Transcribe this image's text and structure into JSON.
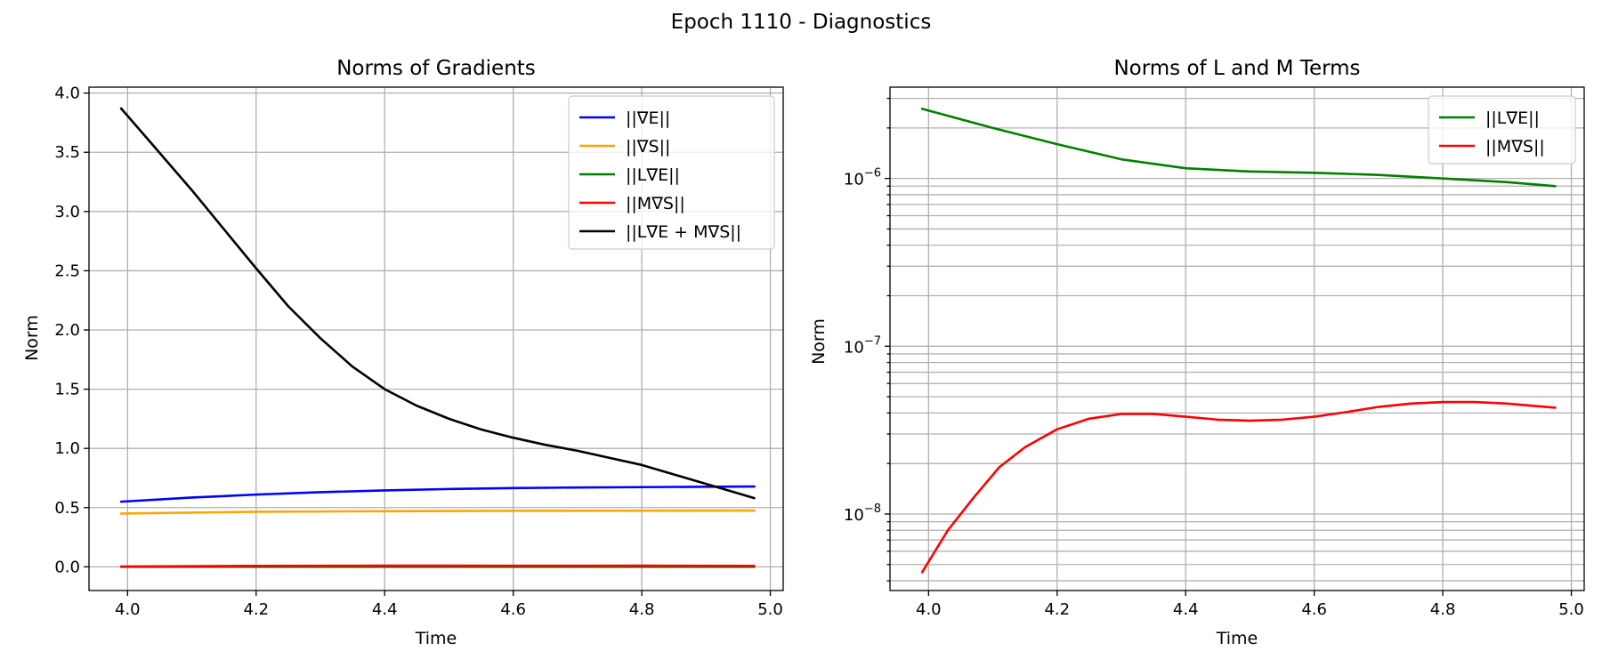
{
  "figure": {
    "suptitle": "Epoch 1110 - Diagnostics"
  },
  "chart_data": [
    {
      "type": "line",
      "title": "Norms of Gradients",
      "xlabel": "Time",
      "ylabel": "Norm",
      "xlim": [
        3.94,
        5.02
      ],
      "ylim": [
        -0.2,
        4.05
      ],
      "yscale": "linear",
      "xticks": [
        4.0,
        4.2,
        4.4,
        4.6,
        4.8,
        5.0
      ],
      "xtick_labels": [
        "4.0",
        "4.2",
        "4.4",
        "4.6",
        "4.8",
        "5.0"
      ],
      "yticks": [
        0.0,
        0.5,
        1.0,
        1.5,
        2.0,
        2.5,
        3.0,
        3.5,
        4.0
      ],
      "ytick_labels": [
        "0.0",
        "0.5",
        "1.0",
        "1.5",
        "2.0",
        "2.5",
        "3.0",
        "3.5",
        "4.0"
      ],
      "grid": true,
      "legend_position": "upper-right",
      "series": [
        {
          "name": "||∇E||",
          "color": "#0000ff",
          "x": [
            3.99,
            4.1,
            4.2,
            4.3,
            4.4,
            4.5,
            4.6,
            4.7,
            4.8,
            4.9,
            4.975
          ],
          "y": [
            0.55,
            0.585,
            0.61,
            0.63,
            0.645,
            0.657,
            0.665,
            0.67,
            0.673,
            0.676,
            0.678
          ]
        },
        {
          "name": "||∇S||",
          "color": "#ffa500",
          "x": [
            3.99,
            4.2,
            4.4,
            4.6,
            4.8,
            4.975
          ],
          "y": [
            0.45,
            0.465,
            0.47,
            0.473,
            0.474,
            0.475
          ]
        },
        {
          "name": "||L∇E||",
          "color": "#008000",
          "x": [
            3.99,
            4.5,
            4.975
          ],
          "y": [
            3e-06,
            1e-06,
            9e-07
          ]
        },
        {
          "name": "||M∇S||",
          "color": "#ff0000",
          "x": [
            3.99,
            4.2,
            4.4,
            4.6,
            4.8,
            4.975
          ],
          "y": [
            0.002,
            0.008,
            0.01,
            0.009,
            0.01,
            0.008
          ]
        },
        {
          "name": "||L∇E + M∇S||",
          "color": "#000000",
          "x": [
            3.99,
            4.03,
            4.1,
            4.15,
            4.2,
            4.25,
            4.3,
            4.35,
            4.4,
            4.45,
            4.5,
            4.55,
            4.6,
            4.65,
            4.7,
            4.75,
            4.8,
            4.85,
            4.9,
            4.95,
            4.975
          ],
          "y": [
            3.87,
            3.62,
            3.18,
            2.85,
            2.52,
            2.2,
            1.93,
            1.69,
            1.5,
            1.36,
            1.25,
            1.16,
            1.09,
            1.03,
            0.98,
            0.92,
            0.86,
            0.78,
            0.7,
            0.62,
            0.58
          ]
        }
      ]
    },
    {
      "type": "line",
      "title": "Norms of L and M Terms",
      "xlabel": "Time",
      "ylabel": "Norm",
      "xlim": [
        3.94,
        5.02
      ],
      "ylim": [
        3.5e-09,
        3.5e-06
      ],
      "yscale": "log",
      "xticks": [
        4.0,
        4.2,
        4.4,
        4.6,
        4.8,
        5.0
      ],
      "xtick_labels": [
        "4.0",
        "4.2",
        "4.4",
        "4.6",
        "4.8",
        "5.0"
      ],
      "ytick_labels": [
        {
          "base": "10",
          "exp": "−6",
          "value": 1e-06
        },
        {
          "base": "10",
          "exp": "−7",
          "value": 1e-07
        },
        {
          "base": "10",
          "exp": "−8",
          "value": 1e-08
        }
      ],
      "grid": true,
      "legend_position": "upper-right",
      "series": [
        {
          "name": "||L∇E||",
          "color": "#008000",
          "x": [
            3.99,
            4.1,
            4.2,
            4.3,
            4.4,
            4.5,
            4.6,
            4.7,
            4.8,
            4.9,
            4.975
          ],
          "y": [
            2.6e-06,
            2e-06,
            1.6e-06,
            1.3e-06,
            1.15e-06,
            1.1e-06,
            1.08e-06,
            1.05e-06,
            1e-06,
            9.5e-07,
            9e-07
          ]
        },
        {
          "name": "||M∇S||",
          "color": "#ff0000",
          "x": [
            3.99,
            4.03,
            4.07,
            4.11,
            4.15,
            4.2,
            4.25,
            4.3,
            4.35,
            4.4,
            4.45,
            4.5,
            4.55,
            4.6,
            4.65,
            4.7,
            4.75,
            4.8,
            4.85,
            4.9,
            4.975
          ],
          "y": [
            4.5e-09,
            8e-09,
            1.25e-08,
            1.9e-08,
            2.5e-08,
            3.2e-08,
            3.7e-08,
            3.95e-08,
            3.95e-08,
            3.8e-08,
            3.65e-08,
            3.6e-08,
            3.65e-08,
            3.8e-08,
            4.05e-08,
            4.35e-08,
            4.55e-08,
            4.65e-08,
            4.65e-08,
            4.55e-08,
            4.3e-08
          ]
        }
      ]
    }
  ]
}
